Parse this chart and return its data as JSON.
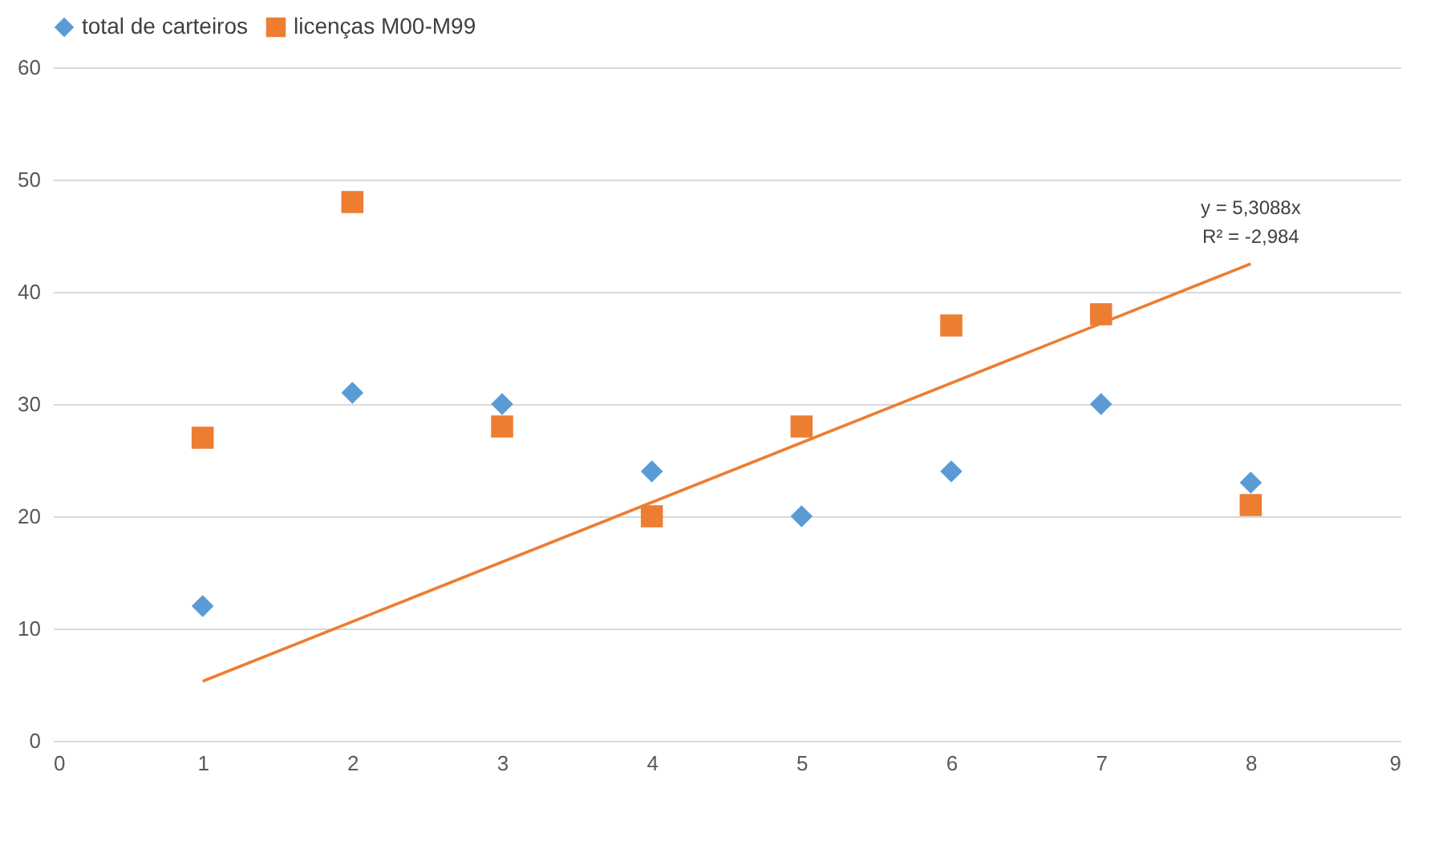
{
  "chart_data": {
    "type": "scatter",
    "x": [
      1,
      2,
      3,
      4,
      5,
      6,
      7,
      8
    ],
    "series": [
      {
        "name": "total de carteiros",
        "color": "#5b9bd5",
        "marker": "diamond",
        "values": [
          12,
          31,
          30,
          24,
          20,
          24,
          30,
          23
        ]
      },
      {
        "name": "licenças M00-M99",
        "color": "#ed7d31",
        "marker": "square",
        "values": [
          27,
          48,
          28,
          20,
          28,
          37,
          38,
          21
        ]
      },
      {
        "type": "line",
        "color": "#ed7d31",
        "x": [
          1,
          8
        ],
        "values": [
          5.3,
          42.5
        ]
      }
    ],
    "annotations": [
      "y = 5,3088x",
      "R² = -2,984"
    ],
    "xlim": [
      0,
      9
    ],
    "xticks": [
      0,
      1,
      2,
      3,
      4,
      5,
      6,
      7,
      8,
      9
    ],
    "ylim": [
      0,
      60
    ],
    "yticks": [
      0,
      10,
      20,
      30,
      40,
      50,
      60
    ],
    "grid": "y",
    "legend": "top"
  }
}
